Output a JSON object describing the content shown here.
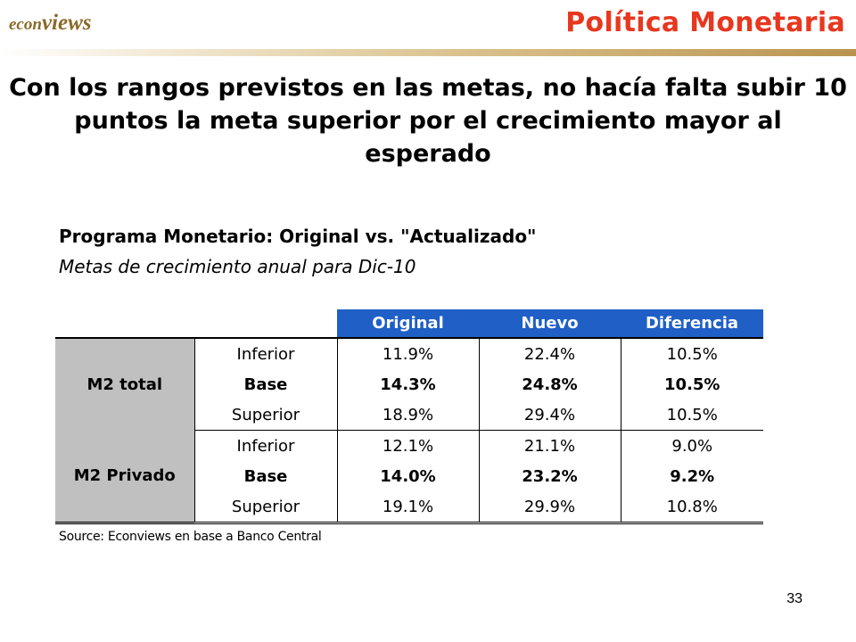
{
  "header": {
    "logo": {
      "part1": "econ",
      "part2": "views"
    },
    "section_title": "Política Monetaria"
  },
  "headline": "Con los rangos previstos en las metas, no hacía falta subir 10 puntos la meta superior por el crecimiento mayor al esperado",
  "table": {
    "title": "Programa Monetario: Original vs. \"Actualizado\"",
    "subtitle": "Metas de crecimiento anual para Dic-10",
    "columns": [
      "Original",
      "Nuevo",
      "Diferencia"
    ],
    "groups": [
      {
        "name": "M2 total",
        "rows": [
          {
            "label": "Inferior",
            "original": "11.9%",
            "nuevo": "22.4%",
            "diferencia": "10.5%"
          },
          {
            "label": "Base",
            "original": "14.3%",
            "nuevo": "24.8%",
            "diferencia": "10.5%"
          },
          {
            "label": "Superior",
            "original": "18.9%",
            "nuevo": "29.4%",
            "diferencia": "10.5%"
          }
        ]
      },
      {
        "name": "M2 Privado",
        "rows": [
          {
            "label": "Inferior",
            "original": "12.1%",
            "nuevo": "21.1%",
            "diferencia": "9.0%"
          },
          {
            "label": "Base",
            "original": "14.0%",
            "nuevo": "23.2%",
            "diferencia": "9.2%"
          },
          {
            "label": "Superior",
            "original": "19.1%",
            "nuevo": "29.9%",
            "diferencia": "10.8%"
          }
        ]
      }
    ],
    "source": "Source: Econviews en base a Banco Central"
  },
  "page_number": "33",
  "colors": {
    "accent_title": "#e8371f",
    "header_blue": "#1f5fc6",
    "group_gray": "#c0c0c0",
    "logo_brown": "#8a6a2a"
  }
}
